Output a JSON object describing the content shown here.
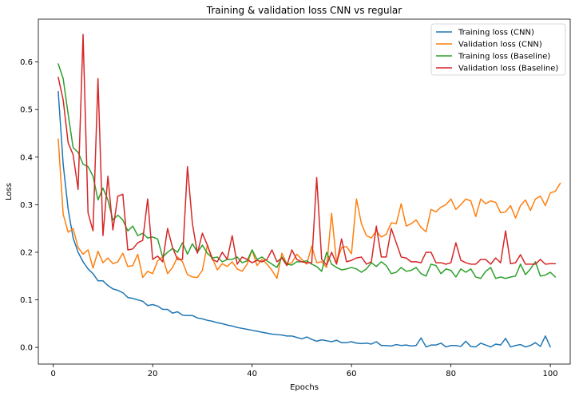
{
  "chart_data": {
    "type": "line",
    "title": "Training & validation loss CNN vs regular",
    "xlabel": "Epochs",
    "ylabel": "Loss",
    "xlim": [
      -3,
      104
    ],
    "ylim": [
      -0.035,
      0.69
    ],
    "xticks": [
      0,
      20,
      40,
      60,
      80,
      100
    ],
    "yticks": [
      0.0,
      0.1,
      0.2,
      0.3,
      0.4,
      0.5,
      0.6
    ],
    "ytick_labels": [
      "0.0",
      "0.1",
      "0.2",
      "0.3",
      "0.4",
      "0.5",
      "0.6"
    ],
    "grid": false,
    "legend": "top-right",
    "x_start": 1,
    "series": [
      {
        "name": "Training loss (CNN)",
        "color": "#1f77b4",
        "values": [
          0.538,
          0.385,
          0.29,
          0.23,
          0.2,
          0.18,
          0.165,
          0.155,
          0.14,
          0.14,
          0.13,
          0.123,
          0.12,
          0.115,
          0.105,
          0.103,
          0.1,
          0.097,
          0.088,
          0.09,
          0.087,
          0.08,
          0.08,
          0.072,
          0.075,
          0.068,
          0.067,
          0.067,
          0.062,
          0.06,
          0.057,
          0.055,
          0.052,
          0.05,
          0.047,
          0.045,
          0.042,
          0.04,
          0.038,
          0.036,
          0.034,
          0.032,
          0.03,
          0.028,
          0.027,
          0.026,
          0.024,
          0.024,
          0.021,
          0.018,
          0.022,
          0.017,
          0.013,
          0.016,
          0.014,
          0.012,
          0.015,
          0.01,
          0.01,
          0.012,
          0.009,
          0.008,
          0.009,
          0.007,
          0.012,
          0.004,
          0.004,
          0.003,
          0.006,
          0.004,
          0.005,
          0.003,
          0.004,
          0.02,
          0.001,
          0.005,
          0.005,
          0.009,
          0.001,
          0.004,
          0.004,
          0.002,
          0.013,
          0.002,
          0.001,
          0.009,
          0.005,
          0.001,
          0.007,
          0.005,
          0.019,
          0.001,
          0.004,
          0.006,
          0.001,
          0.004,
          0.01,
          0.002,
          0.024,
          0.001
        ]
      },
      {
        "name": "Validation loss (CNN)",
        "color": "#ff7f0e",
        "values": [
          0.438,
          0.28,
          0.242,
          0.25,
          0.21,
          0.196,
          0.205,
          0.167,
          0.202,
          0.178,
          0.188,
          0.176,
          0.18,
          0.198,
          0.17,
          0.172,
          0.196,
          0.147,
          0.16,
          0.155,
          0.182,
          0.19,
          0.155,
          0.168,
          0.19,
          0.18,
          0.153,
          0.148,
          0.147,
          0.162,
          0.215,
          0.188,
          0.163,
          0.176,
          0.17,
          0.18,
          0.165,
          0.16,
          0.175,
          0.205,
          0.172,
          0.185,
          0.175,
          0.162,
          0.145,
          0.198,
          0.175,
          0.178,
          0.196,
          0.185,
          0.175,
          0.213,
          0.178,
          0.18,
          0.168,
          0.282,
          0.178,
          0.21,
          0.212,
          0.197,
          0.312,
          0.26,
          0.235,
          0.23,
          0.245,
          0.232,
          0.238,
          0.262,
          0.26,
          0.302,
          0.255,
          0.26,
          0.268,
          0.252,
          0.243,
          0.29,
          0.285,
          0.295,
          0.3,
          0.312,
          0.29,
          0.3,
          0.312,
          0.308,
          0.275,
          0.312,
          0.302,
          0.308,
          0.305,
          0.283,
          0.285,
          0.298,
          0.272,
          0.298,
          0.31,
          0.288,
          0.312,
          0.318,
          0.298,
          0.325,
          0.328,
          0.345
        ]
      },
      {
        "name": "Training loss (Baseline)",
        "color": "#2ca02c",
        "values": [
          0.596,
          0.565,
          0.49,
          0.42,
          0.41,
          0.385,
          0.38,
          0.36,
          0.31,
          0.335,
          0.31,
          0.268,
          0.278,
          0.268,
          0.245,
          0.255,
          0.235,
          0.24,
          0.23,
          0.232,
          0.228,
          0.19,
          0.2,
          0.208,
          0.2,
          0.22,
          0.196,
          0.218,
          0.2,
          0.215,
          0.198,
          0.188,
          0.19,
          0.18,
          0.185,
          0.185,
          0.19,
          0.178,
          0.182,
          0.205,
          0.185,
          0.19,
          0.182,
          0.175,
          0.168,
          0.19,
          0.175,
          0.173,
          0.18,
          0.18,
          0.182,
          0.175,
          0.17,
          0.16,
          0.2,
          0.175,
          0.168,
          0.163,
          0.165,
          0.168,
          0.165,
          0.158,
          0.165,
          0.178,
          0.17,
          0.18,
          0.172,
          0.155,
          0.158,
          0.168,
          0.16,
          0.162,
          0.168,
          0.155,
          0.15,
          0.175,
          0.172,
          0.155,
          0.165,
          0.162,
          0.148,
          0.165,
          0.158,
          0.165,
          0.148,
          0.145,
          0.16,
          0.168,
          0.145,
          0.148,
          0.145,
          0.148,
          0.15,
          0.175,
          0.153,
          0.165,
          0.18,
          0.15,
          0.152,
          0.158,
          0.148
        ]
      },
      {
        "name": "Validation loss (Baseline)",
        "color": "#d62728",
        "values": [
          0.568,
          0.52,
          0.43,
          0.405,
          0.332,
          0.658,
          0.283,
          0.245,
          0.565,
          0.235,
          0.36,
          0.247,
          0.318,
          0.322,
          0.205,
          0.207,
          0.22,
          0.225,
          0.312,
          0.185,
          0.192,
          0.18,
          0.25,
          0.21,
          0.185,
          0.185,
          0.38,
          0.26,
          0.198,
          0.24,
          0.215,
          0.185,
          0.18,
          0.2,
          0.185,
          0.235,
          0.175,
          0.19,
          0.185,
          0.178,
          0.183,
          0.18,
          0.185,
          0.205,
          0.18,
          0.188,
          0.172,
          0.205,
          0.185,
          0.18,
          0.178,
          0.178,
          0.357,
          0.185,
          0.173,
          0.2,
          0.175,
          0.228,
          0.18,
          0.183,
          0.188,
          0.19,
          0.175,
          0.18,
          0.255,
          0.19,
          0.19,
          0.25,
          0.22,
          0.19,
          0.188,
          0.18,
          0.18,
          0.178,
          0.2,
          0.2,
          0.178,
          0.178,
          0.175,
          0.178,
          0.22,
          0.183,
          0.178,
          0.175,
          0.175,
          0.185,
          0.185,
          0.175,
          0.188,
          0.178,
          0.245,
          0.176,
          0.178,
          0.195,
          0.175,
          0.175,
          0.175,
          0.185,
          0.175,
          0.176,
          0.176
        ]
      }
    ]
  }
}
